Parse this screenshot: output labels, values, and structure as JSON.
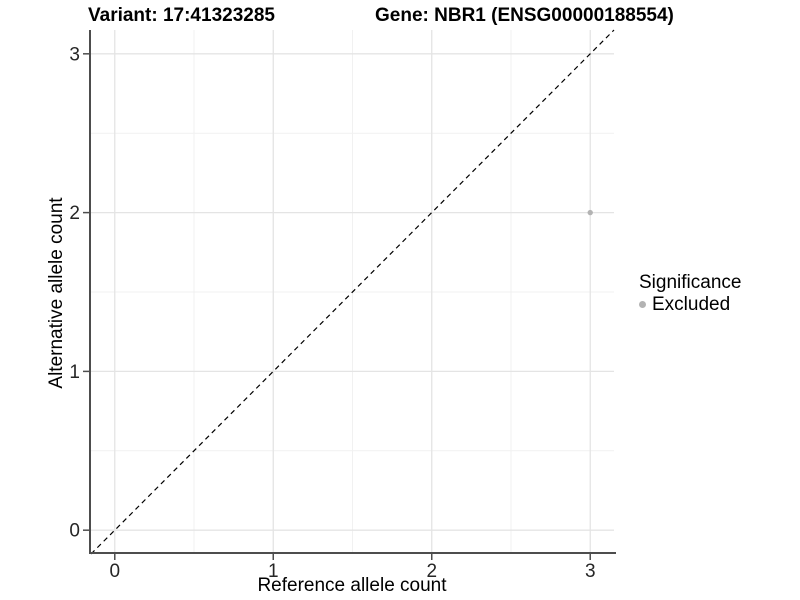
{
  "titles": {
    "variant": "Variant: 17:41323285",
    "gene": "Gene: NBR1 (ENSG00000188554)"
  },
  "legend": {
    "title": "Significance",
    "items": [
      {
        "label": "Excluded",
        "color": "#b3b3b3"
      }
    ]
  },
  "colors": {
    "background": "#ffffff",
    "major_grid": "#e4e4e4",
    "minor_grid": "#f1f1f1",
    "axis_line": "#4d4d4d",
    "tick_label": "#262626",
    "point": "#b3b3b3",
    "reference_line": "#000000"
  },
  "chart_data": {
    "type": "scatter",
    "title_left": "Variant: 17:41323285",
    "title_right": "Gene: NBR1 (ENSG00000188554)",
    "xlabel": "Reference allele count",
    "ylabel": "Alternative allele count",
    "xlim": [
      -0.15,
      3.15
    ],
    "ylim": [
      -0.15,
      3.15
    ],
    "x_ticks": [
      0,
      1,
      2,
      3
    ],
    "y_ticks": [
      0,
      1,
      2,
      3
    ],
    "minor_gridlines": [
      0.5,
      1.5,
      2.5
    ],
    "grid": true,
    "legend_position": "right",
    "series": [
      {
        "name": "Excluded",
        "color": "#b3b3b3",
        "points": [
          {
            "x": 3,
            "y": 2
          }
        ]
      }
    ],
    "reference_line": {
      "description": "identity line y = x",
      "slope": 1,
      "intercept": 0,
      "style": "dashed",
      "color": "#000000"
    }
  }
}
